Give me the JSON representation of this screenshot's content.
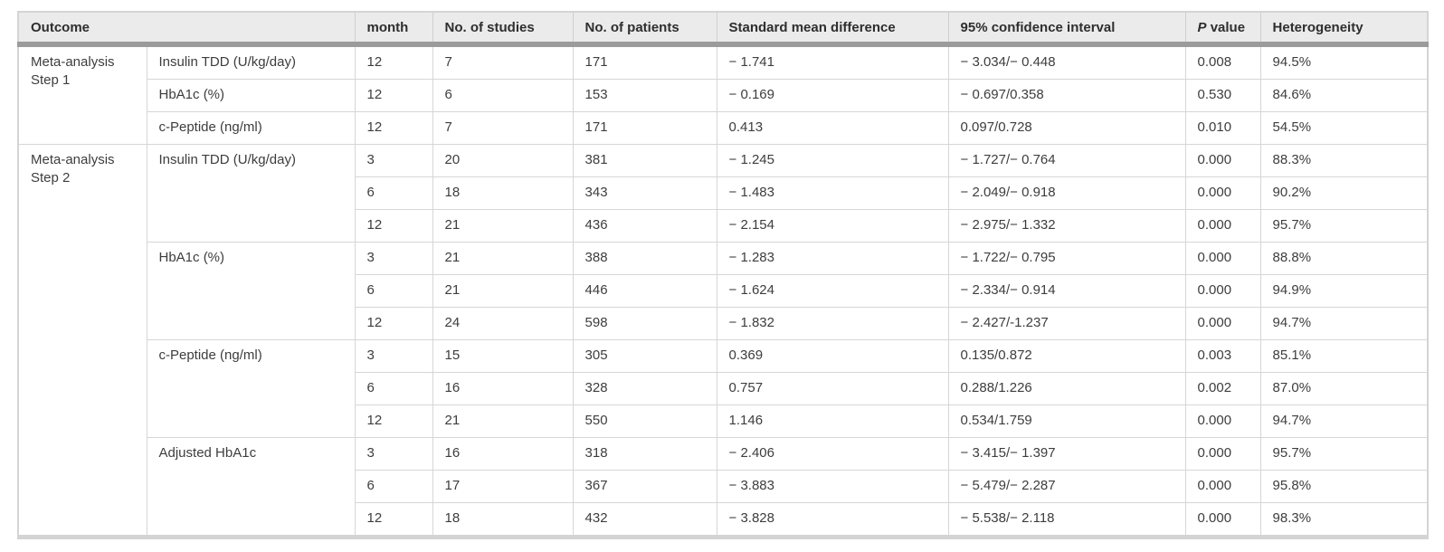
{
  "page": {
    "background": "#ffffff"
  },
  "table": {
    "colors": {
      "header_background": "#ebebeb",
      "header_underline_band": "#9b9b9b",
      "cell_border": "#d6d6d6",
      "outer_border": "#d4d4d4",
      "header_text": "#2e2e2e",
      "cell_text": "#3d3d3d"
    },
    "header": {
      "outcome": "Outcome",
      "month": "month",
      "studies": "No. of studies",
      "patients": "No. of patients",
      "smd": "Standard mean difference",
      "ci": "95% confidence interval",
      "p_italic": "P",
      "p_rest": " value",
      "heterogeneity": "Heterogeneity"
    },
    "groups": [
      {
        "step": "Meta-analysis Step 1",
        "measures": [
          {
            "name": "Insulin TDD (U/kg/day)",
            "rows": [
              [
                "12",
                "7",
                "171",
                "− 1.741",
                "− 3.034/− 0.448",
                "0.008",
                "94.5%"
              ]
            ]
          },
          {
            "name": "HbA1c (%)",
            "rows": [
              [
                "12",
                "6",
                "153",
                "− 0.169",
                "− 0.697/0.358",
                "0.530",
                "84.6%"
              ]
            ]
          },
          {
            "name": "c-Peptide (ng/ml)",
            "rows": [
              [
                "12",
                "7",
                "171",
                "0.413",
                "0.097/0.728",
                "0.010",
                "54.5%"
              ]
            ]
          }
        ]
      },
      {
        "step": "Meta-analysis Step 2",
        "measures": [
          {
            "name": "Insulin TDD (U/kg/day)",
            "rows": [
              [
                "3",
                "20",
                "381",
                "− 1.245",
                "− 1.727/− 0.764",
                "0.000",
                "88.3%"
              ],
              [
                "6",
                "18",
                "343",
                "− 1.483",
                "− 2.049/− 0.918",
                "0.000",
                "90.2%"
              ],
              [
                "12",
                "21",
                "436",
                "− 2.154",
                "− 2.975/− 1.332",
                "0.000",
                "95.7%"
              ]
            ]
          },
          {
            "name": "HbA1c (%)",
            "rows": [
              [
                "3",
                "21",
                "388",
                "− 1.283",
                "− 1.722/− 0.795",
                "0.000",
                "88.8%"
              ],
              [
                "6",
                "21",
                "446",
                "− 1.624",
                "− 2.334/− 0.914",
                "0.000",
                "94.9%"
              ],
              [
                "12",
                "24",
                "598",
                "− 1.832",
                "− 2.427/-1.237",
                "0.000",
                "94.7%"
              ]
            ]
          },
          {
            "name": "c-Peptide (ng/ml)",
            "rows": [
              [
                "3",
                "15",
                "305",
                "0.369",
                "0.135/0.872",
                "0.003",
                "85.1%"
              ],
              [
                "6",
                "16",
                "328",
                "0.757",
                "0.288/1.226",
                "0.002",
                "87.0%"
              ],
              [
                "12",
                "21",
                "550",
                "1.146",
                "0.534/1.759",
                "0.000",
                "94.7%"
              ]
            ]
          },
          {
            "name": "Adjusted HbA1c",
            "rows": [
              [
                "3",
                "16",
                "318",
                "− 2.406",
                "− 3.415/− 1.397",
                "0.000",
                "95.7%"
              ],
              [
                "6",
                "17",
                "367",
                "− 3.883",
                "− 5.479/− 2.287",
                "0.000",
                "95.8%"
              ],
              [
                "12",
                "18",
                "432",
                "− 3.828",
                "− 5.538/− 2.118",
                "0.000",
                "98.3%"
              ]
            ]
          }
        ]
      }
    ]
  }
}
